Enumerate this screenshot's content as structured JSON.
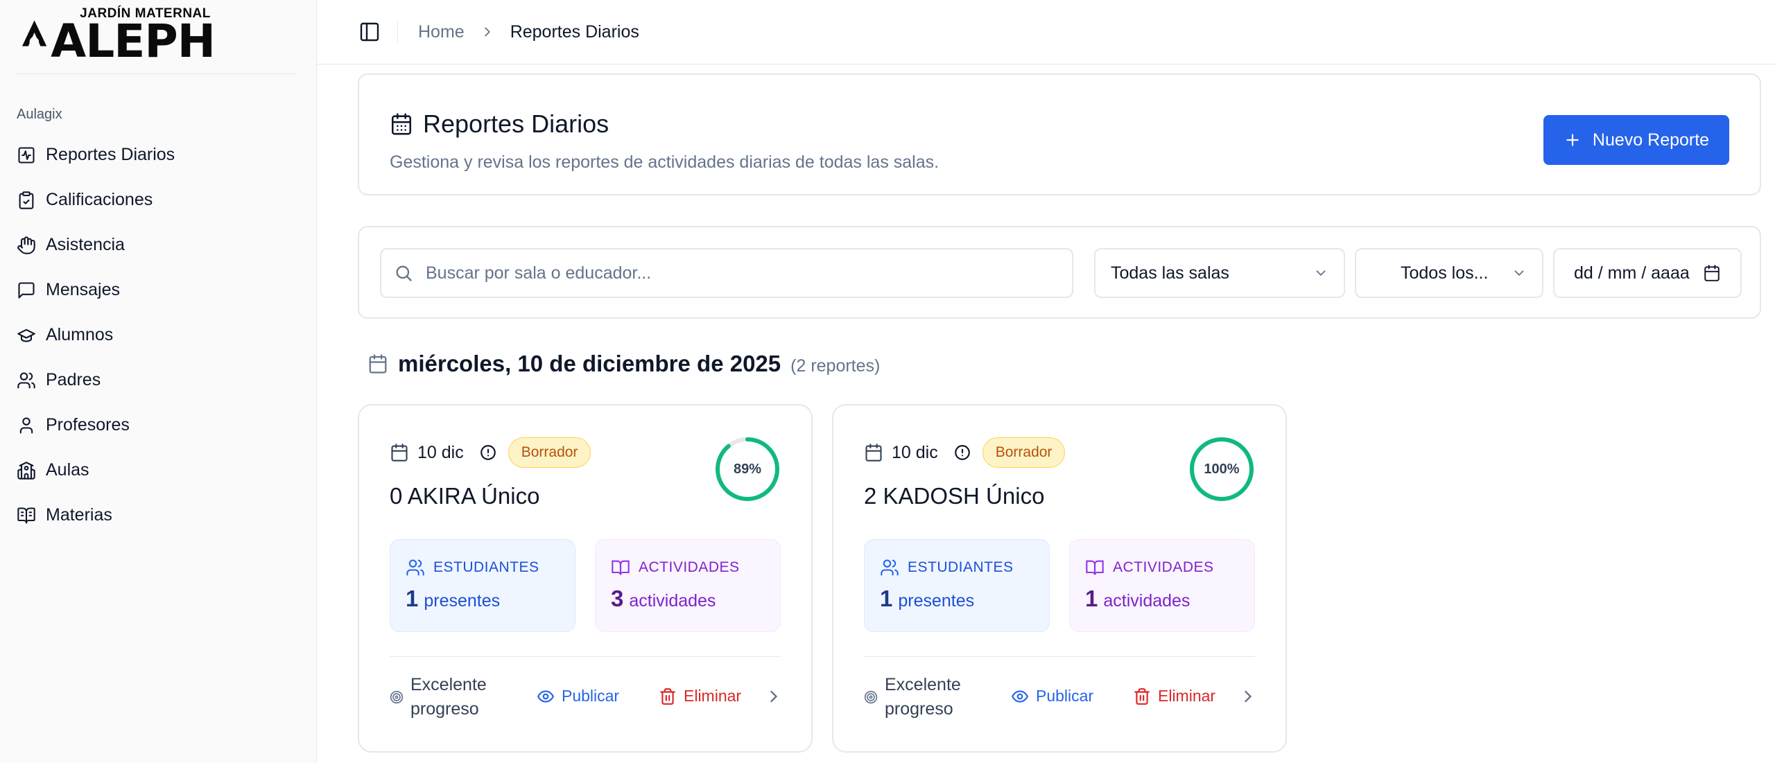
{
  "brand": {
    "small": "JARDÍN MATERNAL",
    "big": "ALEPH"
  },
  "sidebar": {
    "group_label": "Aulagix",
    "items": [
      {
        "label": "Reportes Diarios",
        "icon": "activity-report-icon"
      },
      {
        "label": "Calificaciones",
        "icon": "clipboard-check-icon"
      },
      {
        "label": "Asistencia",
        "icon": "hand-icon"
      },
      {
        "label": "Mensajes",
        "icon": "message-icon"
      },
      {
        "label": "Alumnos",
        "icon": "graduation-cap-icon"
      },
      {
        "label": "Padres",
        "icon": "users-icon"
      },
      {
        "label": "Profesores",
        "icon": "user-icon"
      },
      {
        "label": "Aulas",
        "icon": "school-icon"
      },
      {
        "label": "Materias",
        "icon": "book-icon"
      }
    ]
  },
  "header": {
    "breadcrumb": {
      "home": "Home",
      "current": "Reportes Diarios"
    }
  },
  "page": {
    "title": "Reportes Diarios",
    "subtitle": "Gestiona y revisa los reportes de actividades diarias de todas las salas.",
    "new_button": "Nuevo Reporte"
  },
  "filters": {
    "search_placeholder": "Buscar por sala o educador...",
    "salas": "Todas las salas",
    "estado": "Todos los...",
    "date_placeholder": "dd / mm / aaaa"
  },
  "group": {
    "date": "miércoles, 10 de diciembre de 2025",
    "count": "(2 reportes)"
  },
  "reports": [
    {
      "date": "10 dic",
      "status": "Borrador",
      "title": "0 AKIRA Único",
      "progress_label": "89%",
      "progress": 0.89,
      "students_label": "ESTUDIANTES",
      "students": "1",
      "students_unit": "presentes",
      "activities_label": "ACTIVIDADES",
      "activities": "3",
      "activities_unit": "actividades",
      "progress_text": "Excelente progreso",
      "publish": "Publicar",
      "delete": "Eliminar"
    },
    {
      "date": "10 dic",
      "status": "Borrador",
      "title": "2 KADOSH Único",
      "progress_label": "100%",
      "progress": 1.0,
      "students_label": "ESTUDIANTES",
      "students": "1",
      "students_unit": "presentes",
      "activities_label": "ACTIVIDADES",
      "activities": "1",
      "activities_unit": "actividades",
      "progress_text": "Excelente progreso",
      "publish": "Publicar",
      "delete": "Eliminar"
    }
  ],
  "colors": {
    "primary": "#2563eb",
    "ring": "#10b981",
    "danger": "#dc2626",
    "draft_bg": "#fef3c7"
  }
}
